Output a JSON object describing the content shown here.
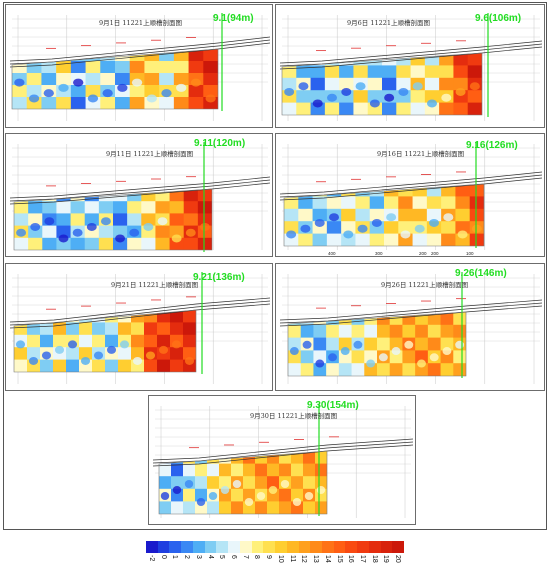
{
  "panels": [
    {
      "id": "p1",
      "title": "9月1日 11221上顺槽剖面图",
      "marker": "9.1(94m)",
      "profile": [
        0.3,
        0.35,
        0.3,
        0.4,
        0.2,
        0.35,
        0.3,
        0.25,
        0.55,
        0.5,
        0.35,
        0.55,
        0.85,
        0.9
      ]
    },
    {
      "id": "p2",
      "title": "9月6日 11221上顺槽剖面图",
      "marker": "9.6(106m)",
      "profile": [
        0.35,
        0.3,
        0.2,
        0.35,
        0.25,
        0.4,
        0.3,
        0.2,
        0.35,
        0.45,
        0.4,
        0.6,
        0.8,
        0.9
      ]
    },
    {
      "id": "p3",
      "title": "9月11日 11221上顺槽剖面图",
      "marker": "9.11(120m)",
      "profile": [
        0.35,
        0.3,
        0.25,
        0.2,
        0.3,
        0.25,
        0.35,
        0.2,
        0.3,
        0.45,
        0.55,
        0.7,
        0.85,
        0.9
      ]
    },
    {
      "id": "p4",
      "title": "9月16日 11221上顺槽剖面图",
      "marker": "9.16(126m)",
      "profile": [
        0.35,
        0.3,
        0.3,
        0.25,
        0.4,
        0.35,
        0.3,
        0.45,
        0.55,
        0.45,
        0.4,
        0.55,
        0.65,
        0.8
      ],
      "xticks": [
        "400",
        "300",
        "200",
        "200",
        "100"
      ]
    },
    {
      "id": "p5",
      "title": "9月21日 11221上顺槽剖面图",
      "marker": "9.21(136m)",
      "profile": [
        0.4,
        0.35,
        0.3,
        0.45,
        0.3,
        0.4,
        0.35,
        0.3,
        0.45,
        0.55,
        0.8,
        0.9,
        0.9,
        0.9
      ]
    },
    {
      "id": "p6",
      "title": "9月26日 11221上顺槽剖面图",
      "marker": "9.26(146m)",
      "profile": [
        0.35,
        0.3,
        0.25,
        0.3,
        0.4,
        0.35,
        0.45,
        0.55,
        0.55,
        0.6,
        0.62,
        0.6,
        0.6,
        0.55
      ]
    },
    {
      "id": "p7",
      "title": "9月30日 11221上顺槽剖面图",
      "marker": "9.30(154m)",
      "profile": [
        0.25,
        0.2,
        0.35,
        0.3,
        0.4,
        0.5,
        0.55,
        0.58,
        0.6,
        0.62,
        0.6,
        0.58,
        0.6,
        0.58
      ]
    }
  ],
  "legend": {
    "labels": [
      "-2",
      "0",
      "1",
      "2",
      "3",
      "4",
      "5",
      "6",
      "7",
      "8",
      "9",
      "10",
      "11",
      "12",
      "13",
      "14",
      "15",
      "16",
      "17",
      "18",
      "19",
      "20"
    ],
    "colors": [
      "#1a1acc",
      "#1f3fe0",
      "#2a62ee",
      "#3a88f4",
      "#4eaef5",
      "#7fcdf3",
      "#b5e5f6",
      "#e9f6fb",
      "#fff9c8",
      "#fff07a",
      "#ffe050",
      "#ffce30",
      "#ffb824",
      "#ffa01e",
      "#ff8a19",
      "#ff7216",
      "#ff5e13",
      "#f94a11",
      "#f03a10",
      "#e42c0e",
      "#d8220c",
      "#cc180a"
    ]
  }
}
